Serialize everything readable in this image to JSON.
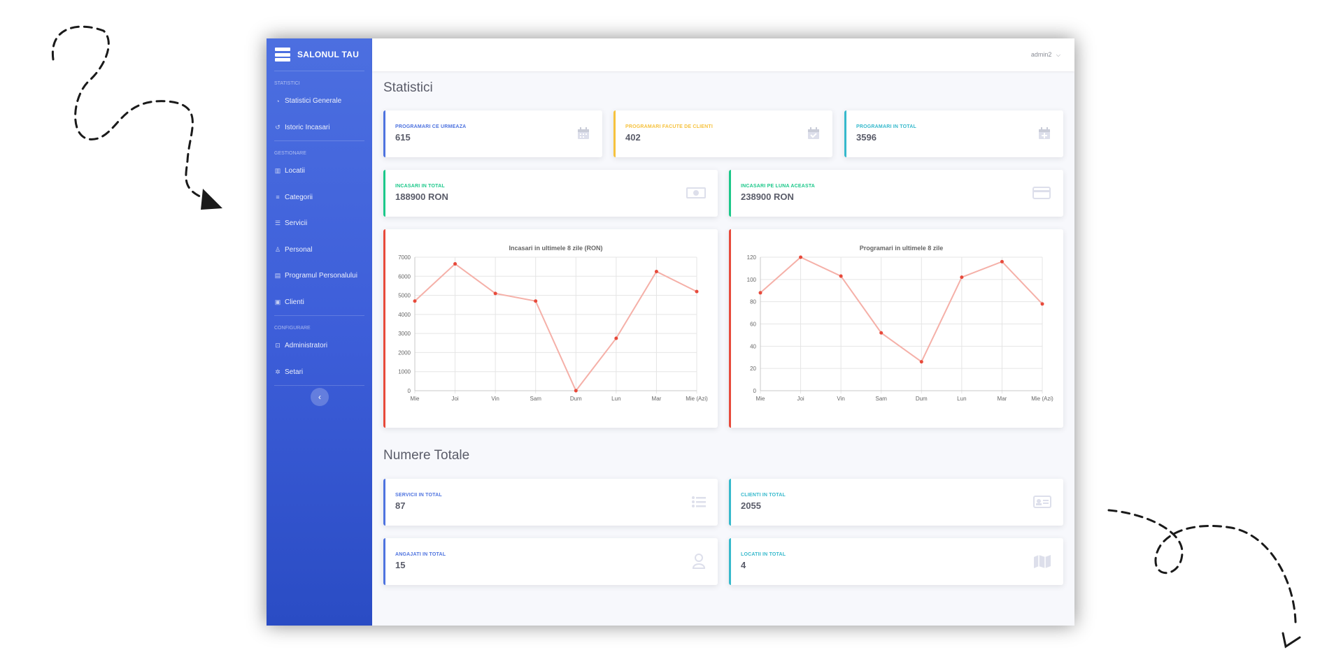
{
  "brand": {
    "name": "SALONUL TAU"
  },
  "sidebar": {
    "sections": [
      {
        "heading": "STATISTICI",
        "items": [
          {
            "label": "Statistici Generale",
            "icon": "dashboard-icon"
          },
          {
            "label": "Istoric Incasari",
            "icon": "history-icon"
          }
        ]
      },
      {
        "heading": "GESTIONARE",
        "items": [
          {
            "label": "Locatii",
            "icon": "map-icon"
          },
          {
            "label": "Categorii",
            "icon": "list-icon"
          },
          {
            "label": "Servicii",
            "icon": "list-ul-icon"
          },
          {
            "label": "Personal",
            "icon": "user-icon"
          },
          {
            "label": "Programul Personalului",
            "icon": "calendar-icon"
          },
          {
            "label": "Clienti",
            "icon": "id-card-icon"
          }
        ]
      },
      {
        "heading": "CONFIGURARE",
        "items": [
          {
            "label": "Administratori",
            "icon": "lock-icon"
          },
          {
            "label": "Setari",
            "icon": "gear-icon"
          }
        ]
      }
    ],
    "collapse_icon": "‹"
  },
  "topbar": {
    "user": "admin2",
    "caret": "⌵"
  },
  "stats_title": "Statistici",
  "totals_title": "Numere Totale",
  "stats": [
    {
      "label": "PROGRAMARI CE URMEAZA",
      "value": "615",
      "color": "#4e73df",
      "icon": "calendar-icon"
    },
    {
      "label": "PROGRAMARI FACUTE DE CLIENTI",
      "value": "402",
      "color": "#f6c23e",
      "icon": "calendar-check-icon"
    },
    {
      "label": "PROGRAMARI IN TOTAL",
      "value": "3596",
      "color": "#36b9cc",
      "icon": "calendar-plus-icon"
    }
  ],
  "income": [
    {
      "label": "INCASARI IN TOTAL",
      "value": "188900 RON",
      "color": "#1cc88a",
      "icon": "money-bill-icon"
    },
    {
      "label": "INCASARI PE LUNA ACEASTA",
      "value": "238900 RON",
      "color": "#1cc88a",
      "icon": "credit-card-icon"
    }
  ],
  "totals": [
    {
      "label": "SERVICII IN TOTAL",
      "value": "87",
      "color": "#4e73df",
      "icon": "list-ul-icon"
    },
    {
      "label": "CLIENTI IN TOTAL",
      "value": "2055",
      "color": "#36b9cc",
      "icon": "id-card-icon"
    },
    {
      "label": "ANGAJATI IN TOTAL",
      "value": "15",
      "color": "#4e73df",
      "icon": "user-icon"
    },
    {
      "label": "LOCATII IN TOTAL",
      "value": "4",
      "color": "#36b9cc",
      "icon": "map-icon"
    }
  ],
  "chart_data": [
    {
      "type": "line",
      "title": "Incasari in ultimele 8 zile (RON)",
      "categories": [
        "Mie",
        "Joi",
        "Vin",
        "Sam",
        "Dum",
        "Lun",
        "Mar",
        "Mie (Azi)"
      ],
      "values": [
        4700,
        6650,
        5100,
        4700,
        0,
        2750,
        6250,
        5200
      ],
      "ylim": [
        0,
        7000
      ],
      "yticks": [
        0,
        1000,
        2000,
        3000,
        4000,
        5000,
        6000,
        7000
      ],
      "grid": true,
      "color": "#e74a3b"
    },
    {
      "type": "line",
      "title": "Programari in ultimele 8 zile",
      "categories": [
        "Mie",
        "Joi",
        "Vin",
        "Sam",
        "Dum",
        "Lun",
        "Mar",
        "Mie (Azi)"
      ],
      "values": [
        88,
        120,
        103,
        52,
        26,
        102,
        116,
        78
      ],
      "ylim": [
        0,
        120
      ],
      "yticks": [
        0,
        20,
        40,
        60,
        80,
        100,
        120
      ],
      "grid": true,
      "color": "#e74a3b"
    }
  ]
}
